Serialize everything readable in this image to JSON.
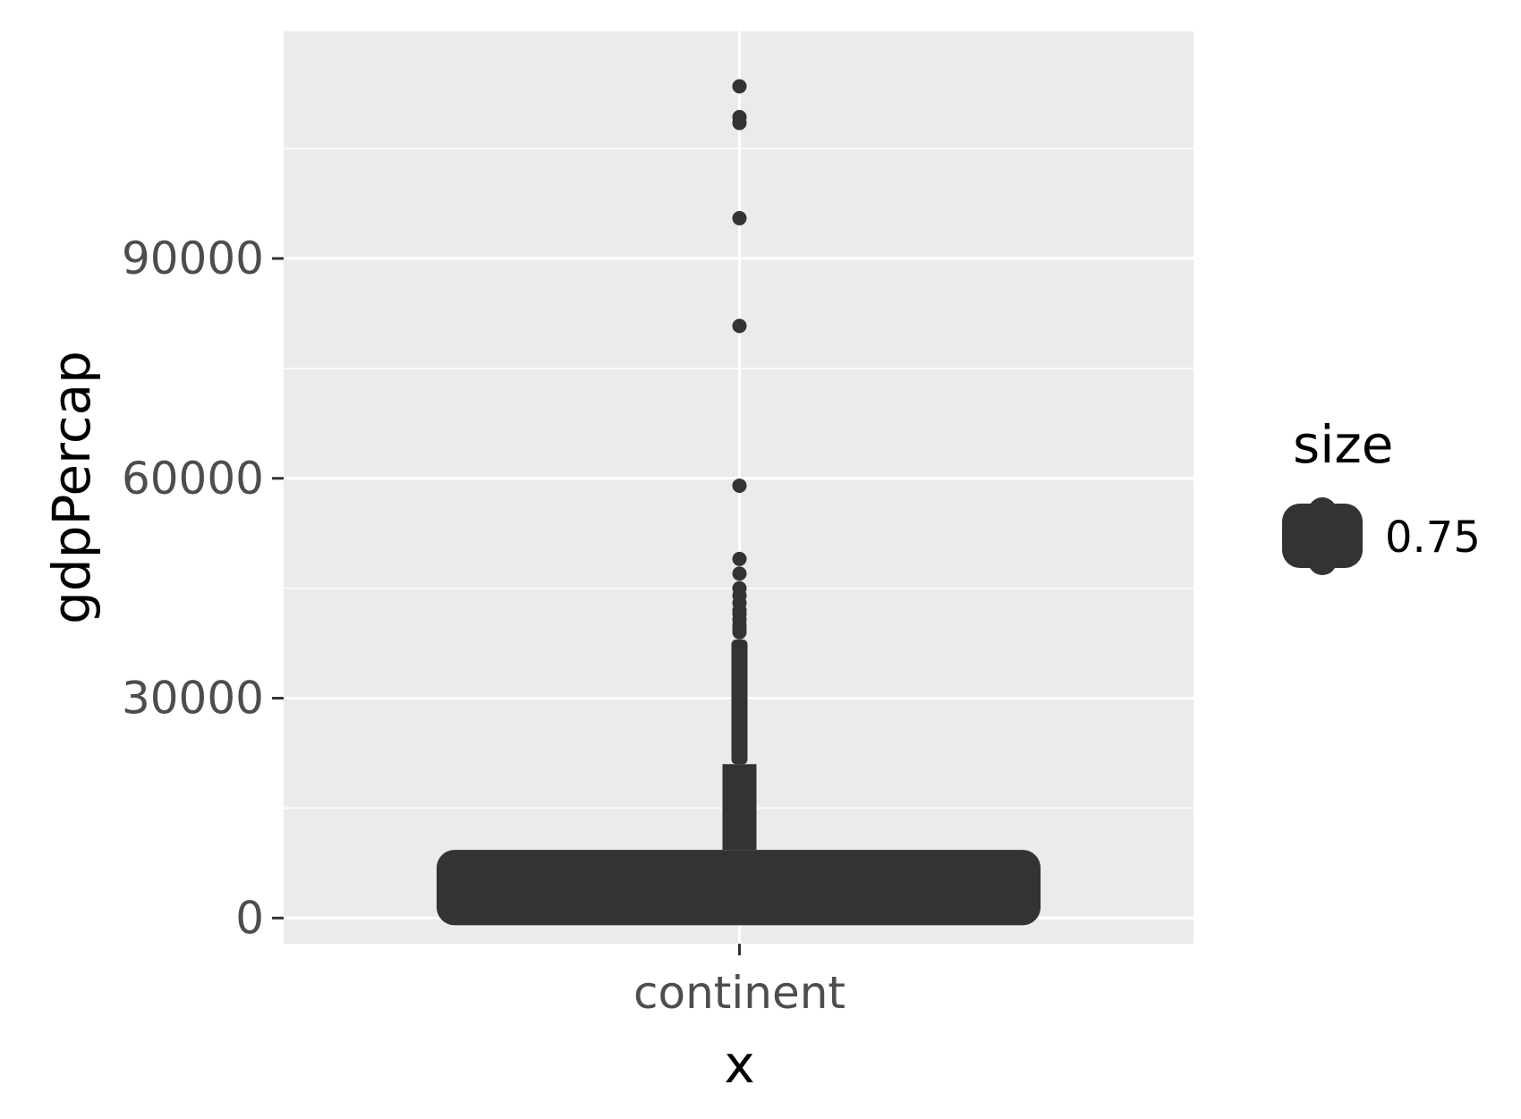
{
  "chart_data": {
    "type": "boxplot",
    "title": "",
    "xlabel": "x",
    "ylabel": "gdpPercap",
    "categories": [
      "continent"
    ],
    "ylim": [
      -3500,
      121000
    ],
    "yticks": [
      0,
      30000,
      60000,
      90000
    ],
    "y_minor_ticks": [
      15000,
      45000,
      75000,
      105000
    ],
    "grid": true,
    "legend": {
      "title": "size",
      "entries": [
        {
          "label": "0.75"
        }
      ],
      "placement": "right"
    },
    "box": {
      "category": "continent",
      "q1": 1200,
      "median": 3500,
      "q3": 9300,
      "whisker_low": 240,
      "whisker_high": 21000
    },
    "outliers_dense_range": [
      21000,
      38000
    ],
    "outliers": [
      39000,
      39500,
      40000,
      40700,
      41500,
      42000,
      43000,
      44000,
      45000,
      47000,
      49000,
      59000,
      80800,
      95500,
      108500,
      109300,
      113500
    ],
    "colors": {
      "panel": "#ebebeb",
      "grid": "#ffffff",
      "mark": "#333333",
      "axis_text": "#4d4d4d",
      "axis_title": "#000000"
    }
  }
}
